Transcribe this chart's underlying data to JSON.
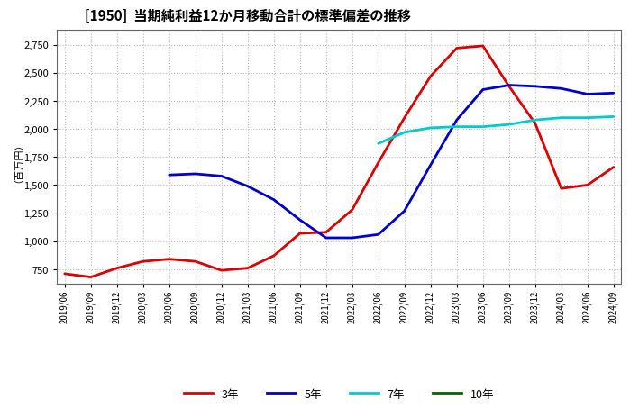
{
  "title": "[1950]  当期純利益12か月移動合計の標準偏差の推移",
  "ylabel": "（百万円）",
  "background_color": "#ffffff",
  "plot_bg_color": "#ffffff",
  "grid_color": "#bbbbbb",
  "ylim": [
    620,
    2880
  ],
  "yticks": [
    750,
    1000,
    1250,
    1500,
    1750,
    2000,
    2250,
    2500,
    2750
  ],
  "x_labels": [
    "2019/06",
    "2019/09",
    "2019/12",
    "2020/03",
    "2020/06",
    "2020/09",
    "2020/12",
    "2021/03",
    "2021/06",
    "2021/09",
    "2021/12",
    "2022/03",
    "2022/06",
    "2022/09",
    "2022/12",
    "2023/03",
    "2023/06",
    "2023/09",
    "2023/12",
    "2024/03",
    "2024/06",
    "2024/09"
  ],
  "series": {
    "3年": {
      "color": "#dd0000",
      "data_y": [
        710,
        680,
        760,
        820,
        840,
        820,
        740,
        760,
        870,
        1070,
        1080,
        1280,
        1700,
        2100,
        2470,
        2720,
        2740,
        2380,
        2050,
        1470,
        1500,
        1660
      ]
    },
    "5年": {
      "color": "#0000cc",
      "data_y": [
        null,
        null,
        null,
        null,
        1590,
        1600,
        1580,
        1490,
        1370,
        1190,
        1030,
        1030,
        1060,
        1270,
        1680,
        2080,
        2350,
        2390,
        2380,
        2360,
        2310,
        2320
      ]
    },
    "7年": {
      "color": "#00cccc",
      "data_y": [
        null,
        null,
        null,
        null,
        null,
        null,
        null,
        null,
        null,
        null,
        null,
        null,
        1870,
        1970,
        2010,
        2020,
        2020,
        2040,
        2080,
        2100,
        2100,
        2110
      ]
    },
    "10年": {
      "color": "#006600",
      "data_y": [
        null,
        null,
        null,
        null,
        null,
        null,
        null,
        null,
        null,
        null,
        null,
        null,
        null,
        null,
        null,
        null,
        null,
        null,
        null,
        null,
        null,
        null
      ]
    }
  },
  "legend_order": [
    "3年",
    "5年",
    "7年",
    "10年"
  ]
}
